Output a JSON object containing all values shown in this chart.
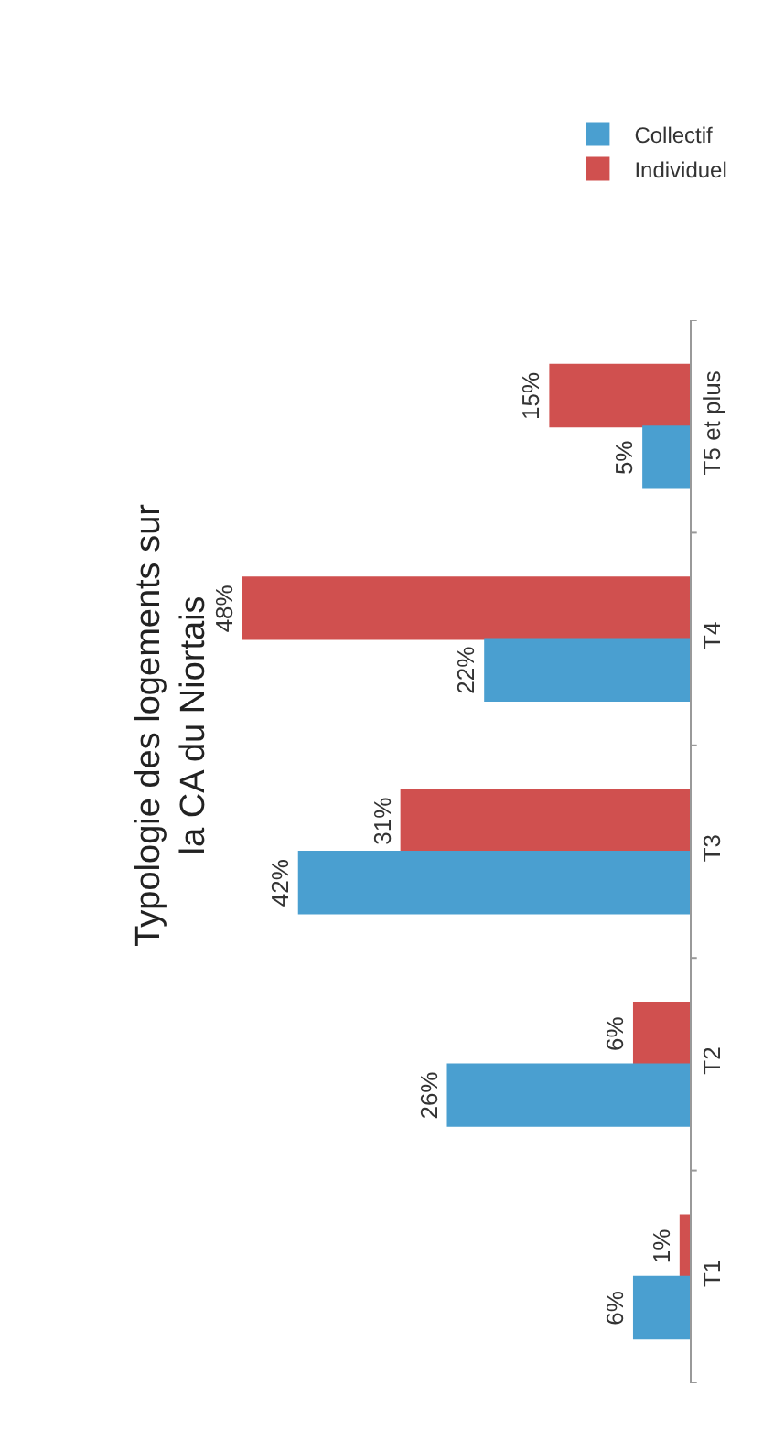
{
  "chart_data": {
    "type": "bar",
    "orientation": "horizontal",
    "title": "Typologie des logements sur\nla CA du Niortais",
    "categories": [
      "T5 et plus",
      "T4",
      "T3",
      "T2",
      "T1"
    ],
    "series": [
      {
        "name": "Collectif",
        "color": "#4a9fd0",
        "values": [
          5,
          22,
          42,
          26,
          6
        ],
        "value_labels": [
          "5%",
          "22%",
          "42%",
          "26%",
          "6%"
        ]
      },
      {
        "name": "Individuel",
        "color": "#d0504f",
        "values": [
          15,
          48,
          31,
          6,
          1
        ],
        "value_labels": [
          "15%",
          "48%",
          "31%",
          "6%",
          "1%"
        ]
      }
    ],
    "legend": "top right"
  }
}
